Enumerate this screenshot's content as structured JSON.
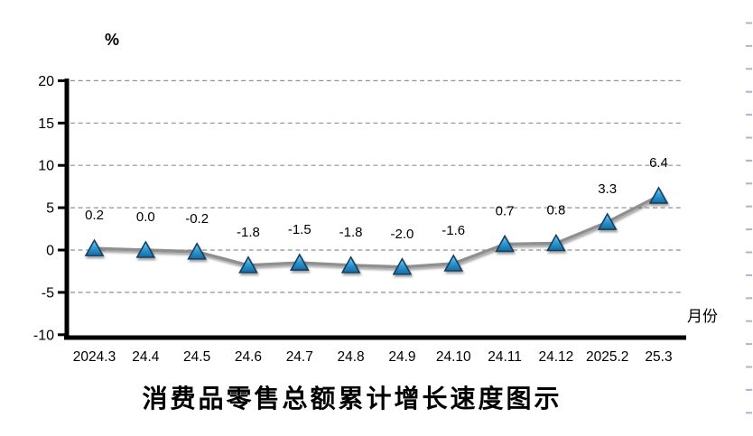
{
  "chart_data": {
    "type": "line",
    "title": "消费品零售总额累计增长速度图示",
    "ylabel": "%",
    "xlabel": "月份",
    "categories": [
      "2024.3",
      "24.4",
      "24.5",
      "24.6",
      "24.7",
      "24.8",
      "24.9",
      "24.10",
      "24.11",
      "24.12",
      "2025.2",
      "25.3"
    ],
    "values": [
      0.2,
      0.0,
      -0.2,
      -1.8,
      -1.5,
      -1.8,
      -2.0,
      -1.6,
      0.7,
      0.8,
      3.3,
      6.4
    ],
    "data_labels": [
      "0.2",
      "0.0",
      "-0.2",
      "-1.8",
      "-1.5",
      "-1.8",
      "-2.0",
      "-1.6",
      "0.7",
      "0.8",
      "3.3",
      "6.4"
    ],
    "y_ticks": [
      20,
      15,
      10,
      5,
      0,
      -5,
      -10
    ],
    "ylim": [
      -10,
      20
    ],
    "grid": "horizontal-dashed",
    "legend": "none",
    "marker": "triangle",
    "colors": {
      "line": "#8f8f8f",
      "marker_top": "#90d3f2",
      "marker_mid": "#2f9fd8",
      "marker_bottom": "#16699f",
      "marker_border": "#143f63",
      "gridline": "#919191",
      "axis": "#000000",
      "text": "#000000",
      "page_edge_dash": "#a6abce"
    }
  }
}
